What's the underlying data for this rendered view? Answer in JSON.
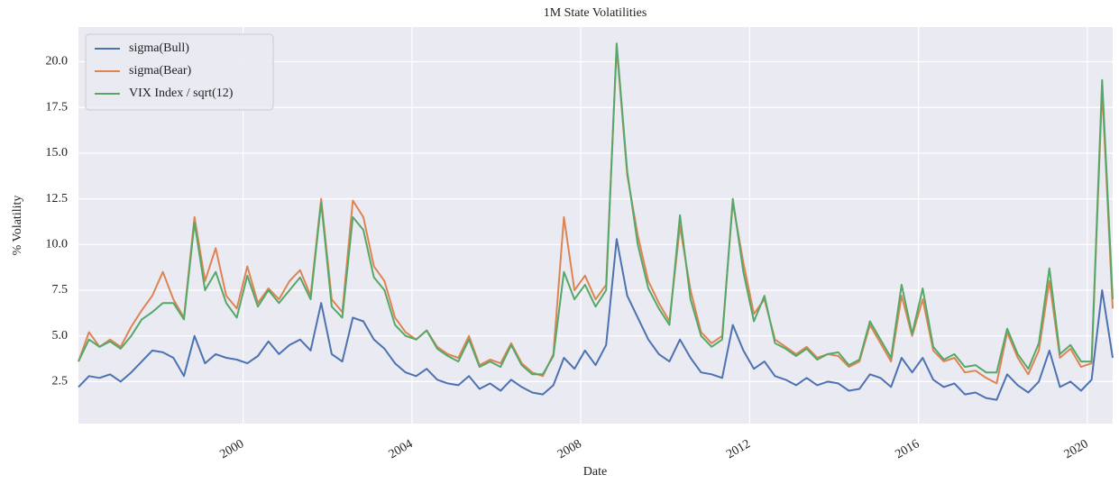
{
  "chart_data": {
    "type": "line",
    "title": "1M State Volatilities",
    "x_label": "Date",
    "y_label": "% Volatility",
    "x": [
      1996.1,
      1996.35,
      1996.6,
      1996.85,
      1997.1,
      1997.35,
      1997.6,
      1997.85,
      1998.1,
      1998.35,
      1998.6,
      1998.85,
      1999.1,
      1999.35,
      1999.6,
      1999.85,
      2000.1,
      2000.35,
      2000.6,
      2000.85,
      2001.1,
      2001.35,
      2001.6,
      2001.85,
      2002.1,
      2002.35,
      2002.6,
      2002.85,
      2003.1,
      2003.35,
      2003.6,
      2003.85,
      2004.1,
      2004.35,
      2004.6,
      2004.85,
      2005.1,
      2005.35,
      2005.6,
      2005.85,
      2006.1,
      2006.35,
      2006.6,
      2006.85,
      2007.1,
      2007.35,
      2007.6,
      2007.85,
      2008.1,
      2008.35,
      2008.6,
      2008.85,
      2009.1,
      2009.35,
      2009.6,
      2009.85,
      2010.1,
      2010.35,
      2010.6,
      2010.85,
      2011.1,
      2011.35,
      2011.6,
      2011.85,
      2012.1,
      2012.35,
      2012.6,
      2012.85,
      2013.1,
      2013.35,
      2013.6,
      2013.85,
      2014.1,
      2014.35,
      2014.6,
      2014.85,
      2015.1,
      2015.35,
      2015.6,
      2015.85,
      2016.1,
      2016.35,
      2016.6,
      2016.85,
      2017.1,
      2017.35,
      2017.6,
      2017.85,
      2018.1,
      2018.35,
      2018.6,
      2018.85,
      2019.1,
      2019.35,
      2019.6,
      2019.85,
      2020.1,
      2020.35,
      2020.6
    ],
    "series": [
      {
        "name": "sigma(Bull)",
        "color": "#4c72b0",
        "values": [
          2.2,
          2.8,
          2.7,
          2.9,
          2.5,
          3.0,
          3.6,
          4.2,
          4.1,
          3.8,
          2.8,
          5.0,
          3.5,
          4.0,
          3.8,
          3.7,
          3.5,
          3.9,
          4.7,
          4.0,
          4.5,
          4.8,
          4.2,
          6.8,
          4.0,
          3.6,
          6.0,
          5.8,
          4.8,
          4.3,
          3.5,
          3.0,
          2.8,
          3.2,
          2.6,
          2.4,
          2.3,
          2.8,
          2.1,
          2.4,
          2.0,
          2.6,
          2.2,
          1.9,
          1.8,
          2.3,
          3.8,
          3.2,
          4.2,
          3.4,
          4.5,
          10.3,
          7.2,
          6.0,
          4.8,
          4.0,
          3.6,
          4.8,
          3.8,
          3.0,
          2.9,
          2.7,
          5.6,
          4.2,
          3.2,
          3.6,
          2.8,
          2.6,
          2.3,
          2.7,
          2.3,
          2.5,
          2.4,
          2.0,
          2.1,
          2.9,
          2.7,
          2.2,
          3.8,
          3.0,
          3.8,
          2.6,
          2.2,
          2.4,
          1.8,
          1.9,
          1.6,
          1.5,
          2.9,
          2.3,
          1.9,
          2.5,
          4.2,
          2.2,
          2.5,
          2.0,
          2.6,
          7.5,
          3.8
        ]
      },
      {
        "name": "sigma(Bear)",
        "color": "#dd8452",
        "values": [
          3.6,
          5.2,
          4.4,
          4.8,
          4.4,
          5.5,
          6.4,
          7.2,
          8.5,
          7.0,
          6.0,
          11.5,
          8.0,
          9.8,
          7.2,
          6.5,
          8.8,
          6.8,
          7.6,
          7.0,
          8.0,
          8.6,
          7.2,
          12.5,
          7.0,
          6.3,
          12.4,
          11.5,
          8.8,
          8.0,
          6.0,
          5.2,
          4.8,
          5.3,
          4.4,
          4.0,
          3.8,
          5.0,
          3.4,
          3.7,
          3.5,
          4.6,
          3.5,
          3.0,
          2.8,
          4.0,
          11.5,
          7.5,
          8.3,
          7.0,
          7.8,
          20.8,
          13.8,
          10.5,
          8.0,
          6.8,
          5.8,
          11.0,
          7.5,
          5.2,
          4.6,
          5.0,
          12.3,
          9.0,
          6.2,
          7.0,
          4.8,
          4.4,
          4.0,
          4.4,
          3.8,
          4.0,
          3.9,
          3.3,
          3.6,
          5.6,
          4.6,
          3.6,
          7.2,
          5.0,
          7.0,
          4.2,
          3.6,
          3.8,
          3.0,
          3.1,
          2.7,
          2.4,
          5.2,
          3.8,
          2.9,
          4.2,
          8.0,
          3.8,
          4.3,
          3.3,
          3.5,
          18.5,
          6.5
        ]
      },
      {
        "name": "VIX Index / sqrt(12)",
        "color": "#55a868",
        "values": [
          3.6,
          4.8,
          4.4,
          4.7,
          4.3,
          5.0,
          5.9,
          6.3,
          6.8,
          6.8,
          5.9,
          11.2,
          7.5,
          8.5,
          6.8,
          6.0,
          8.3,
          6.6,
          7.5,
          6.8,
          7.5,
          8.2,
          7.0,
          12.3,
          6.6,
          6.0,
          11.5,
          10.8,
          8.2,
          7.5,
          5.6,
          5.0,
          4.8,
          5.3,
          4.3,
          3.9,
          3.6,
          4.8,
          3.3,
          3.6,
          3.3,
          4.5,
          3.4,
          2.9,
          2.9,
          3.9,
          8.5,
          7.0,
          7.8,
          6.6,
          7.5,
          21.0,
          14.0,
          10.0,
          7.6,
          6.5,
          5.6,
          11.6,
          7.0,
          5.0,
          4.4,
          4.8,
          12.5,
          8.5,
          5.8,
          7.2,
          4.6,
          4.3,
          3.9,
          4.3,
          3.7,
          4.0,
          4.1,
          3.4,
          3.7,
          5.8,
          4.8,
          3.8,
          7.8,
          5.1,
          7.6,
          4.4,
          3.7,
          4.0,
          3.3,
          3.4,
          3.0,
          3.0,
          5.4,
          4.0,
          3.2,
          4.6,
          8.7,
          4.0,
          4.5,
          3.6,
          3.6,
          19.0,
          7.0
        ]
      }
    ],
    "xlim": [
      1996.1,
      2020.6
    ],
    "xticks": [
      2000,
      2004,
      2008,
      2012,
      2016,
      2020
    ],
    "ylim": [
      0.2,
      21.9
    ],
    "yticks": [
      2.5,
      {
        "value": 5.0,
        "label": "5.0"
      },
      7.5,
      {
        "value": 10.0,
        "label": "10.0"
      },
      12.5,
      {
        "value": 15.0,
        "label": "15.0"
      },
      17.5,
      {
        "value": 20.0,
        "label": "20.0"
      }
    ],
    "grid": true,
    "legend": "upper-left"
  }
}
